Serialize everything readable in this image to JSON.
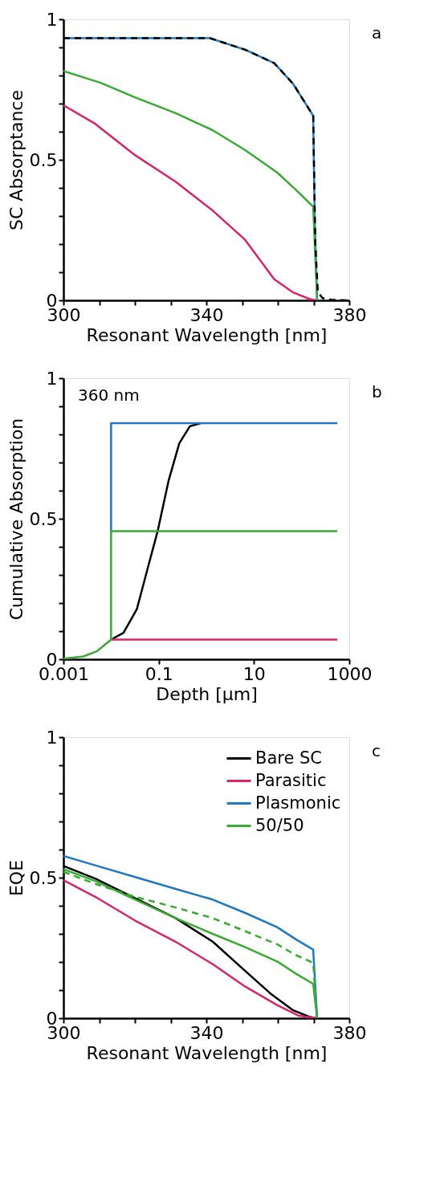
{
  "chart_data": [
    {
      "type": "line",
      "xlabel": "Resonant Wavelength [nm]",
      "ylabel": "SC Absorptance",
      "annotations": [
        "a"
      ],
      "xlim": [
        300,
        380
      ],
      "ylim": [
        0,
        1
      ],
      "xticks": [
        300,
        {
          "value": 310,
          "label": null
        },
        {
          "value": 320,
          "label": null
        },
        {
          "value": 330,
          "label": null
        },
        340,
        {
          "value": 350,
          "label": null
        },
        {
          "value": 360,
          "label": null
        },
        {
          "value": 370,
          "label": null
        },
        380
      ],
      "yticks": [
        0,
        {
          "value": 0.1,
          "label": null
        },
        {
          "value": 0.2,
          "label": null
        },
        {
          "value": 0.3,
          "label": null
        },
        {
          "value": 0.4,
          "label": null
        },
        0.5,
        {
          "value": 0.6,
          "label": null
        },
        {
          "value": 0.7,
          "label": null
        },
        {
          "value": 0.8,
          "label": null
        },
        {
          "value": 0.9,
          "label": null
        },
        1
      ],
      "grid": false,
      "series": [
        {
          "color": "#1f78c1",
          "x": [
            300,
            320,
            341,
            351,
            359,
            364.3,
            369.9,
            370.3,
            371
          ],
          "values": [
            0.933,
            0.933,
            0.933,
            0.891,
            0.844,
            0.77,
            0.657,
            0.3,
            0
          ]
        },
        {
          "color": "#3aaa35",
          "x": [
            300,
            310.4,
            320.1,
            331.4,
            341.8,
            350.8,
            359.8,
            365,
            369.9,
            371
          ],
          "values": [
            0.816,
            0.774,
            0.722,
            0.666,
            0.605,
            0.535,
            0.455,
            0.394,
            0.333,
            0
          ]
        },
        {
          "color": "#d6246e",
          "x": [
            300,
            308.9,
            320.1,
            331.4,
            341.8,
            350.8,
            359,
            364.3,
            368.8,
            370.7
          ],
          "values": [
            0.694,
            0.628,
            0.516,
            0.422,
            0.319,
            0.216,
            0.075,
            0.028,
            0.005,
            0
          ]
        },
        {
          "color": "#000000",
          "line_style": "dashed",
          "x": [
            300,
            320,
            341,
            351,
            359,
            364.3,
            369.9,
            370.5,
            371.2,
            372.5,
            375,
            380
          ],
          "values": [
            0.933,
            0.933,
            0.933,
            0.891,
            0.844,
            0.77,
            0.657,
            0.2,
            0.03,
            0.008,
            0.002,
            0
          ]
        }
      ]
    },
    {
      "type": "line",
      "xlabel": "Depth [μm]",
      "ylabel": "Cumulative Absorption",
      "annotations": [
        "360 nm",
        "b"
      ],
      "log": "x",
      "xlim": [
        0.001,
        1000
      ],
      "ylim": [
        0,
        1
      ],
      "xticks": [
        0.001,
        0.1,
        10,
        1000
      ],
      "yticks": [
        0,
        {
          "value": 0.1,
          "label": null
        },
        {
          "value": 0.2,
          "label": null
        },
        {
          "value": 0.3,
          "label": null
        },
        {
          "value": 0.4,
          "label": null
        },
        0.5,
        {
          "value": 0.6,
          "label": null
        },
        {
          "value": 0.7,
          "label": null
        },
        {
          "value": 0.8,
          "label": null
        },
        {
          "value": 0.9,
          "label": null
        },
        1
      ],
      "grid": false,
      "series": [
        {
          "color": "#000000",
          "x": [
            0.01,
            0.0182,
            0.0347,
            0.0575,
            0.096,
            0.162,
            0.27,
            0.45,
            0.76
          ],
          "values": [
            0.07,
            0.094,
            0.178,
            0.318,
            0.459,
            0.637,
            0.768,
            0.829,
            0.84
          ]
        },
        {
          "color": "#d6246e",
          "x": [
            0.01,
            560
          ],
          "values": [
            0.07,
            0.07
          ]
        },
        {
          "color": "#1f78c1",
          "x": [
            0.01,
            0.01,
            560
          ],
          "values": [
            0.456,
            0.84,
            0.84
          ]
        },
        {
          "color": "#3aaa35",
          "x": [
            0.001,
            0.0026,
            0.005,
            0.01,
            0.01,
            560
          ],
          "values": [
            0.002,
            0.01,
            0.028,
            0.07,
            0.456,
            0.456
          ]
        }
      ]
    },
    {
      "type": "line",
      "xlabel": "Resonant Wavelength [nm]",
      "ylabel": "EQE",
      "annotations": [
        "c"
      ],
      "xlim": [
        300,
        380
      ],
      "ylim": [
        0,
        1
      ],
      "xticks": [
        300,
        {
          "value": 310,
          "label": null
        },
        {
          "value": 320,
          "label": null
        },
        {
          "value": 330,
          "label": null
        },
        340,
        {
          "value": 350,
          "label": null
        },
        {
          "value": 360,
          "label": null
        },
        {
          "value": 370,
          "label": null
        },
        380
      ],
      "yticks": [
        0,
        {
          "value": 0.1,
          "label": null
        },
        {
          "value": 0.2,
          "label": null
        },
        {
          "value": 0.3,
          "label": null
        },
        {
          "value": 0.4,
          "label": null
        },
        0.5,
        {
          "value": 0.6,
          "label": null
        },
        {
          "value": 0.7,
          "label": null
        },
        {
          "value": 0.8,
          "label": null
        },
        {
          "value": 0.9,
          "label": null
        },
        1
      ],
      "grid": false,
      "legend": "top right",
      "series": [
        {
          "name": "Bare SC",
          "color": "#000000",
          "x": [
            300,
            308.9,
            320.1,
            331.4,
            341.8,
            350.8,
            358.3,
            364.3,
            368.8,
            370.7
          ],
          "values": [
            0.542,
            0.497,
            0.427,
            0.356,
            0.272,
            0.169,
            0.084,
            0.028,
            0.005,
            0
          ]
        },
        {
          "name": "Parasitic",
          "color": "#d6246e",
          "x": [
            300,
            308.9,
            320.1,
            331.4,
            341.8,
            350.8,
            359.8,
            365.8,
            370.7
          ],
          "values": [
            0.491,
            0.432,
            0.347,
            0.272,
            0.192,
            0.113,
            0.047,
            0.009,
            0
          ]
        },
        {
          "name": "Plasmonic",
          "color": "#1f78c1",
          "x": [
            300,
            308.9,
            320.1,
            331.4,
            341.8,
            350.8,
            359.8,
            365,
            369.9,
            371
          ],
          "values": [
            0.577,
            0.544,
            0.502,
            0.46,
            0.422,
            0.375,
            0.324,
            0.281,
            0.244,
            0
          ]
        },
        {
          "name": "50/50",
          "color": "#3aaa35",
          "x": [
            300,
            308.9,
            320.1,
            331.4,
            341.8,
            350.8,
            359.8,
            365,
            369.9,
            371
          ],
          "values": [
            0.53,
            0.488,
            0.422,
            0.356,
            0.3,
            0.253,
            0.202,
            0.159,
            0.122,
            0
          ]
        },
        {
          "color": "#3aaa35",
          "line_style": "dashed",
          "x": [
            300,
            308.9,
            320.1,
            331.4,
            341.8,
            350.8,
            359.8,
            365,
            369.9,
            371
          ],
          "values": [
            0.521,
            0.478,
            0.432,
            0.394,
            0.356,
            0.31,
            0.263,
            0.225,
            0.197,
            0
          ]
        }
      ]
    }
  ]
}
